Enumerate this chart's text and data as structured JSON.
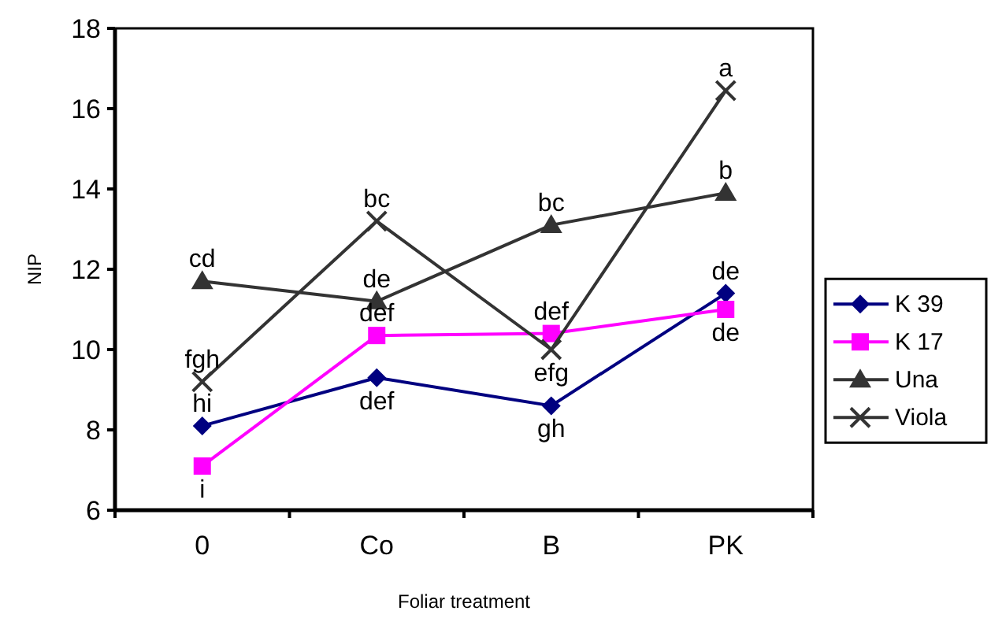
{
  "chart_data": {
    "type": "line",
    "xlabel": "Foliar treatment",
    "ylabel": "NIP",
    "categories": [
      "0",
      "Co",
      "B",
      "PK"
    ],
    "ylim": [
      6,
      18
    ],
    "yticks": [
      6,
      8,
      10,
      12,
      14,
      16,
      18
    ],
    "grid": false,
    "legend": "right",
    "series": [
      {
        "name": "K 39",
        "color": "#000080",
        "marker": "diamond",
        "values": [
          8.1,
          9.3,
          8.6,
          11.4
        ]
      },
      {
        "name": "K 17",
        "color": "#ff00ff",
        "marker": "square",
        "values": [
          7.1,
          10.35,
          10.4,
          11.0
        ]
      },
      {
        "name": "Una",
        "color": "#333333",
        "marker": "triangle",
        "values": [
          11.7,
          11.2,
          13.1,
          13.9
        ]
      },
      {
        "name": "Viola",
        "color": "#333333",
        "marker": "cross",
        "values": [
          9.2,
          13.2,
          10.0,
          16.45
        ]
      }
    ],
    "annotations": [
      {
        "text": "hi",
        "x": "0",
        "y": 8.1
      },
      {
        "text": "i",
        "x": "0",
        "y": 7.1
      },
      {
        "text": "cd",
        "x": "0",
        "y": 11.7
      },
      {
        "text": "fgh",
        "x": "0",
        "y": 9.2
      },
      {
        "text": "def",
        "x": "Co",
        "y": 9.3
      },
      {
        "text": "def",
        "x": "Co",
        "y": 10.35
      },
      {
        "text": "de",
        "x": "Co",
        "y": 11.2
      },
      {
        "text": "bc",
        "x": "Co",
        "y": 13.2
      },
      {
        "text": "gh",
        "x": "B",
        "y": 8.6
      },
      {
        "text": "def",
        "x": "B",
        "y": 10.4
      },
      {
        "text": "bc",
        "x": "B",
        "y": 13.1
      },
      {
        "text": "efg",
        "x": "B",
        "y": 10.0
      },
      {
        "text": "de",
        "x": "PK",
        "y": 11.4
      },
      {
        "text": "de",
        "x": "PK",
        "y": 11.0
      },
      {
        "text": "b",
        "x": "PK",
        "y": 13.9
      },
      {
        "text": "a",
        "x": "PK",
        "y": 16.45
      }
    ]
  }
}
